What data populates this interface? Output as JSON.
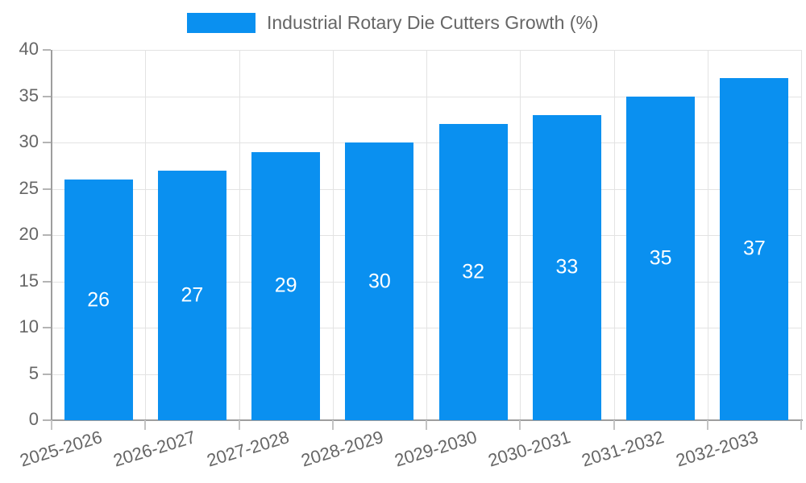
{
  "legend": {
    "label": "Industrial Rotary Die Cutters Growth (%)",
    "swatch_color": "#0a90f0"
  },
  "chart_data": {
    "type": "bar",
    "title": "",
    "xlabel": "",
    "ylabel": "",
    "categories": [
      "2025-2026",
      "2026-2027",
      "2027-2028",
      "2028-2029",
      "2029-2030",
      "2030-2031",
      "2031-2032",
      "2032-2033"
    ],
    "series": [
      {
        "name": "Industrial Rotary Die Cutters Growth (%)",
        "values": [
          26,
          27,
          29,
          30,
          32,
          33,
          35,
          37
        ]
      }
    ],
    "value_labels_shown": true,
    "ylim": [
      0,
      40
    ],
    "ytick_step": 5,
    "yticks": [
      0,
      5,
      10,
      15,
      20,
      25,
      30,
      35,
      40
    ],
    "grid": true,
    "legend_position": "top-center",
    "x_label_rotation_deg": -17,
    "colors": {
      "bar": "#0a90f0",
      "value_label": "#ffffff",
      "tick_text": "#666666",
      "legend_text": "#666666",
      "gridline": "#e3e3e3",
      "axis_line": "#9e9e9e"
    }
  }
}
